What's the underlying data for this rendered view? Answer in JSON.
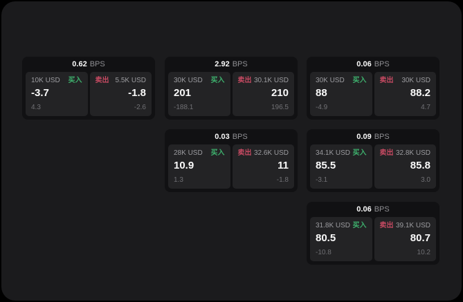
{
  "labels": {
    "bps_unit": "BPS",
    "buy": "买入",
    "sell": "卖出"
  },
  "colors": {
    "outer_background": "#000000",
    "panel_background": "#1b1b1d",
    "card_background": "#111113",
    "tile_background": "#232325",
    "buy_green": "#3eb06d",
    "sell_red": "#c64a62",
    "text_primary": "#fafafa",
    "text_secondary": "#9c9ca0",
    "text_dim": "#707074"
  },
  "cards": [
    {
      "bps": "0.62",
      "buy": {
        "amount": "10K USD",
        "value": "-3.7",
        "sub": "4.3"
      },
      "sell": {
        "amount": "5.5K USD",
        "value": "-1.8",
        "sub": "-2.6"
      }
    },
    {
      "bps": "2.92",
      "buy": {
        "amount": "30K USD",
        "value": "201",
        "sub": "-188.1"
      },
      "sell": {
        "amount": "30.1K USD",
        "value": "210",
        "sub": "196.5"
      }
    },
    {
      "bps": "0.06",
      "buy": {
        "amount": "30K USD",
        "value": "88",
        "sub": "-4.9"
      },
      "sell": {
        "amount": "30K USD",
        "value": "88.2",
        "sub": "4.7"
      }
    },
    {
      "bps": "0.03",
      "buy": {
        "amount": "28K USD",
        "value": "10.9",
        "sub": "1.3"
      },
      "sell": {
        "amount": "32.6K USD",
        "value": "11",
        "sub": "-1.8"
      }
    },
    {
      "bps": "0.09",
      "buy": {
        "amount": "34.1K USD",
        "value": "85.5",
        "sub": "-3.1"
      },
      "sell": {
        "amount": "32.8K USD",
        "value": "85.8",
        "sub": "3.0"
      }
    },
    {
      "bps": "0.06",
      "buy": {
        "amount": "31.8K USD",
        "value": "80.5",
        "sub": "-10.8"
      },
      "sell": {
        "amount": "39.1K USD",
        "value": "80.7",
        "sub": "10.2"
      }
    }
  ]
}
